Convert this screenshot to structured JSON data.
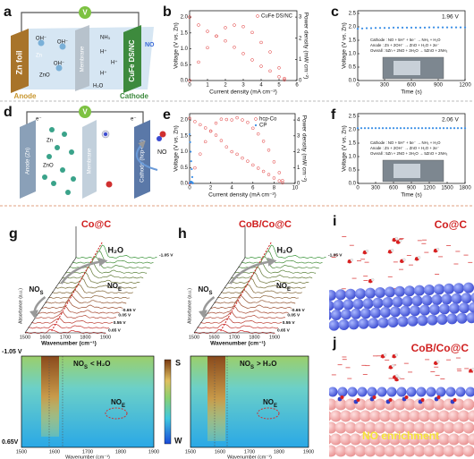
{
  "panel_a": {
    "label": "a",
    "texts": {
      "v": "V",
      "zn_foil": "Zn foil",
      "anode": "Anode",
      "cathode": "Cathode",
      "membrane": "Membrane",
      "oh": "OH⁻",
      "zno": "ZnO",
      "zn": "Zn",
      "nh3": "NH₃",
      "h": "H⁺",
      "h2o": "H₂O",
      "no": "NO",
      "cathode_material": "CuFe DS/NC"
    }
  },
  "panel_d": {
    "label": "d",
    "texts": {
      "v": "V",
      "e": "e⁻",
      "anode": "Anode (Zn)",
      "membrane": "Membrane",
      "cathode": "Cathode (hcp-Co)",
      "zn": "Zn",
      "zno": "ZnO",
      "no": "NO"
    }
  },
  "chart_data": [
    {
      "type": "line",
      "label": "b",
      "xlabel": "Current density (mA cm⁻²)",
      "ylabel": "Voltage (V vs. Zn)",
      "y2label": "Power density (mW cm⁻²)",
      "xlim": [
        0,
        6
      ],
      "xticks": [
        0,
        1,
        2,
        3,
        4,
        5,
        6
      ],
      "ylim": [
        0,
        2.2
      ],
      "yticks": [
        {
          "value": 0,
          "label": "0.0"
        },
        {
          "value": 0.5,
          "label": "0.5"
        },
        {
          "value": 1,
          "label": "1.0"
        },
        {
          "value": 1.5,
          "label": "1.5"
        },
        {
          "value": 2,
          "label": "2.0"
        }
      ],
      "y2lim": [
        0,
        3.3
      ],
      "y2ticks": [
        0,
        1,
        2,
        3
      ],
      "legend": "top-right",
      "series": [
        {
          "name": "CuFe DS/NC",
          "color": "#e03030",
          "marker": "open",
          "x": [
            0,
            0.5,
            1,
            1.5,
            2,
            2.5,
            3,
            3.5,
            4,
            4.5,
            5,
            5.3
          ],
          "values": [
            2.0,
            1.75,
            1.55,
            1.4,
            1.25,
            1.05,
            0.85,
            0.65,
            0.45,
            0.3,
            0.12,
            0.02
          ],
          "power_values": [
            0,
            0.87,
            1.55,
            2.1,
            2.5,
            2.62,
            2.55,
            2.27,
            1.8,
            1.35,
            0.6,
            0.1
          ]
        }
      ]
    },
    {
      "type": "line",
      "label": "c",
      "xlabel": "Time (s)",
      "ylabel": "Voltage (V vs. Zn)",
      "xlim": [
        0,
        1200
      ],
      "xticks": [
        0,
        300,
        600,
        900,
        1200
      ],
      "ylim": [
        0,
        2.6
      ],
      "yticks": [
        {
          "value": 0,
          "label": "0.0"
        },
        {
          "value": 0.5,
          "label": "0.5"
        },
        {
          "value": 1,
          "label": "1.0"
        },
        {
          "value": 1.5,
          "label": "1.5"
        },
        {
          "value": 2,
          "label": "2.0"
        },
        {
          "value": 2.5,
          "label": "2.5"
        }
      ],
      "annotation": "1.96 V",
      "equations": [
        "Cathode : NO + 5H⁺ + 5e⁻ → NH₃ + H₂O",
        "Anode : Zn + 2OH⁻ → ZnO + H₂O + 2e⁻",
        "Overall : 5Zn + 2NO + 3H₂O → 5ZnO + 2NH₃"
      ],
      "series": [
        {
          "color": "#3a8ee6",
          "marker": "filled",
          "x": [
            0,
            50,
            100,
            150,
            200,
            250,
            300,
            350,
            400,
            450,
            500,
            550,
            600,
            650,
            700,
            750,
            800,
            850,
            900,
            950,
            1000,
            1050,
            1100,
            1150,
            1200
          ],
          "values": [
            1.93,
            1.94,
            1.95,
            1.95,
            1.96,
            1.96,
            1.96,
            1.96,
            1.97,
            1.97,
            1.97,
            1.97,
            1.97,
            1.97,
            1.97,
            1.97,
            1.98,
            1.98,
            1.98,
            1.98,
            1.98,
            1.98,
            1.98,
            1.98,
            1.98
          ]
        }
      ]
    },
    {
      "type": "line",
      "label": "e",
      "xlabel": "Current density (mA cm⁻²)",
      "ylabel": "Voltage (V vs. Zn)",
      "y2label": "Power density (mW cm⁻²)",
      "xlim": [
        0,
        10
      ],
      "xticks": [
        0,
        2,
        4,
        6,
        8,
        10
      ],
      "ylim": [
        0,
        2.2
      ],
      "yticks": [
        {
          "value": 0,
          "label": "0.0"
        },
        {
          "value": 0.5,
          "label": "0.5"
        },
        {
          "value": 1,
          "label": "1.0"
        },
        {
          "value": 1.5,
          "label": "1.5"
        },
        {
          "value": 2,
          "label": "2.0"
        }
      ],
      "y2lim": [
        0,
        4.4
      ],
      "y2ticks": [
        0,
        1,
        2,
        3,
        4
      ],
      "legend": "top-right",
      "series": [
        {
          "name": "hcp-Co",
          "color": "#e03030",
          "marker": "open",
          "x": [
            0,
            0.5,
            1,
            1.5,
            2,
            2.5,
            3,
            3.5,
            4,
            4.5,
            5,
            5.5,
            6,
            6.5,
            7,
            7.5,
            8,
            8.5,
            8.8
          ],
          "values": [
            2.05,
            1.95,
            1.85,
            1.75,
            1.65,
            1.52,
            1.35,
            1.15,
            1.0,
            0.92,
            0.8,
            0.7,
            0.58,
            0.48,
            0.38,
            0.28,
            0.17,
            0.08,
            0.02
          ],
          "power_values": [
            0,
            0.98,
            1.85,
            2.63,
            3.3,
            3.8,
            4.05,
            4.03,
            4.0,
            4.14,
            4.0,
            3.85,
            3.48,
            3.12,
            2.66,
            2.1,
            1.36,
            0.68,
            0.18
          ]
        },
        {
          "name": "CP",
          "color": "#3a8ee6",
          "marker": "filled",
          "x": [
            0,
            0.05,
            0.1,
            0.15,
            0.2,
            0.25,
            0.3
          ],
          "values": [
            1.55,
            1.3,
            1.0,
            0.7,
            0.45,
            0.2,
            0.02
          ],
          "power_values": [
            0,
            0.065,
            0.1,
            0.105,
            0.09,
            0.05,
            0.006
          ]
        }
      ]
    },
    {
      "type": "line",
      "label": "f",
      "xlabel": "Time (s)",
      "ylabel": "Voltage (V vs. Zn)",
      "xlim": [
        0,
        1800
      ],
      "xticks": [
        0,
        300,
        600,
        900,
        1200,
        1500,
        1800
      ],
      "ylim": [
        0,
        2.6
      ],
      "yticks": [
        {
          "value": 0,
          "label": "0.0"
        },
        {
          "value": 0.5,
          "label": "0.5"
        },
        {
          "value": 1,
          "label": "1.0"
        },
        {
          "value": 1.5,
          "label": "1.5"
        },
        {
          "value": 2,
          "label": "2.0"
        },
        {
          "value": 2.5,
          "label": "2.5"
        }
      ],
      "annotation": "2.06 V",
      "equations": [
        "Cathode : NO + 5H⁺ + 5e⁻ → NH₃ + H₂O",
        "Anode : Zn + 2OH⁻ → ZnO + H₂O + 2e⁻",
        "Overall : 5Zn + 2NO + 3H₂O → 5ZnO + 2NH₃"
      ],
      "series": [
        {
          "color": "#3a8ee6",
          "marker": "filled",
          "x": [
            0,
            60,
            120,
            180,
            240,
            300,
            360,
            420,
            480,
            540,
            600,
            660,
            720,
            780,
            840,
            900,
            960,
            1020,
            1080,
            1140,
            1200,
            1260,
            1320,
            1380,
            1440,
            1500,
            1560,
            1620,
            1680,
            1740,
            1800
          ],
          "values": [
            2.06,
            2.06,
            2.06,
            2.06,
            2.06,
            2.06,
            2.06,
            2.06,
            2.06,
            2.06,
            2.06,
            2.06,
            2.06,
            2.06,
            2.06,
            2.06,
            2.06,
            2.06,
            2.06,
            2.06,
            2.06,
            2.06,
            2.06,
            2.06,
            2.06,
            2.06,
            2.06,
            2.06,
            2.06,
            2.06,
            2.06
          ]
        }
      ]
    }
  ],
  "panel_g": {
    "label": "g",
    "title": "Co@C",
    "h2o": "H₂O",
    "nos": "NO",
    "nos_sub": "S",
    "noe": "NO",
    "noe_sub": "E",
    "potentials": [
      "-1.05 V",
      "-0.65 V",
      "0.05 V",
      "0.55 V",
      "0.65 V"
    ],
    "ylabel": "Absorbance (a.u.)",
    "xlabel": "Wavenumber (cm⁻¹)",
    "xticks": [
      1500,
      1600,
      1700,
      1800,
      1900
    ],
    "relation": "< H₂O",
    "map_top": "-1.05 V",
    "map_bottom": "0.65V"
  },
  "panel_h": {
    "label": "h",
    "title": "CoB/Co@C",
    "h2o": "H₂O",
    "nos": "NO",
    "nos_sub": "S",
    "noe": "NO",
    "noe_sub": "E",
    "potentials": [
      "-1.05 V",
      "-0.65 V",
      "0.05 V",
      "0.55 V",
      "0.65 V"
    ],
    "ylabel": "Absorbance (a.u.)",
    "xlabel": "Wavenumber (cm⁻¹)",
    "xticks": [
      1500,
      1600,
      1700,
      1800,
      1900
    ],
    "relation": "> H₂O"
  },
  "colorbar": {
    "top": "S",
    "bottom": "W"
  },
  "panel_i": {
    "label": "i",
    "title": "Co@C"
  },
  "panel_j": {
    "label": "j",
    "title": "CoB/Co@C",
    "note": "NO enrichment"
  }
}
